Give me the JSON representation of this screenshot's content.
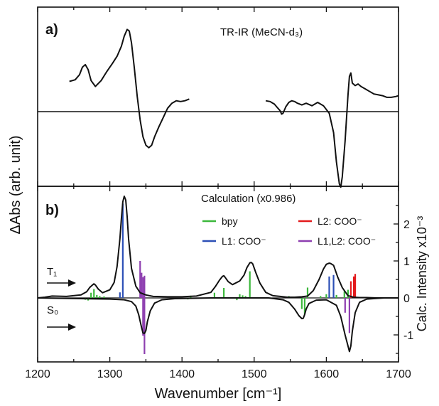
{
  "figure": {
    "ylabel_left": "ΔAbs (arb. unit)",
    "xlabel": "Wavenumber [cm⁻¹]",
    "xlim": [
      1200,
      1700
    ],
    "xticks": [
      "1200",
      "1300",
      "1400",
      "1500",
      "1600",
      "1700"
    ]
  },
  "panel_a": {
    "label": "a)",
    "title": "TR-IR (MeCN-d₃)"
  },
  "panel_b": {
    "label": "b)",
    "title": "Calculation (x0.986)",
    "ylabel_right": "Calc. Intensity x10⁻³",
    "yticks": [
      "-1",
      "0",
      "1",
      "2"
    ],
    "state_T1": "T₁",
    "state_S0": "S₀",
    "legend": [
      {
        "label": "bpy",
        "color": "#3cb83c"
      },
      {
        "label": "L2: COO⁻",
        "color": "#e31a1c"
      },
      {
        "label": "L1: COO⁻",
        "color": "#2c4fb6"
      },
      {
        "label": "L1,L2: COO⁻",
        "color": "#8e3fb0"
      }
    ]
  },
  "chart_data": [
    {
      "type": "line",
      "title": "TR-IR (MeCN-d₃)",
      "xlabel": "Wavenumber [cm⁻¹]",
      "ylabel": "ΔAbs (arb. unit)",
      "xlim": [
        1200,
        1700
      ],
      "ylim": [
        -0.95,
        1.0
      ],
      "series": [
        {
          "x": [
            1244,
            1252,
            1258,
            1262,
            1266,
            1270,
            1274,
            1280,
            1288,
            1296,
            1304,
            1310,
            1316,
            1320,
            1324,
            1327,
            1330,
            1334,
            1338,
            1342,
            1346,
            1350,
            1354,
            1358,
            1362,
            1368,
            1374,
            1380,
            1386,
            1392,
            1398,
            1404,
            1410
          ],
          "y": [
            0.36,
            0.38,
            0.44,
            0.53,
            0.56,
            0.5,
            0.37,
            0.3,
            0.37,
            0.48,
            0.58,
            0.66,
            0.78,
            0.9,
            0.98,
            0.96,
            0.82,
            0.52,
            0.18,
            -0.1,
            -0.3,
            -0.4,
            -0.43,
            -0.4,
            -0.3,
            -0.18,
            -0.07,
            0.04,
            0.1,
            0.13,
            0.12,
            0.13,
            0.15
          ]
        },
        {
          "x": [
            1516,
            1522,
            1528,
            1532,
            1536,
            1538,
            1540,
            1544,
            1548,
            1552,
            1556,
            1560,
            1566,
            1572,
            1580,
            1588,
            1596,
            1604,
            1610,
            1614,
            1618,
            1620,
            1622,
            1626,
            1630,
            1632,
            1634,
            1636,
            1640,
            1644,
            1648,
            1654,
            1660,
            1666,
            1672,
            1678,
            1684,
            1690,
            1696,
            1700
          ],
          "y": [
            0.13,
            0.12,
            0.09,
            0.05,
            0.01,
            -0.03,
            -0.02,
            0.06,
            0.11,
            0.13,
            0.12,
            0.1,
            0.08,
            0.1,
            0.07,
            0.11,
            0.07,
            -0.02,
            -0.25,
            -0.6,
            -0.86,
            -0.9,
            -0.78,
            -0.35,
            0.2,
            0.42,
            0.46,
            0.34,
            0.31,
            0.33,
            0.3,
            0.27,
            0.24,
            0.21,
            0.2,
            0.19,
            0.17,
            0.17,
            0.18,
            0.19
          ]
        }
      ]
    },
    {
      "type": "line",
      "title": "Calculation (x0.986)",
      "xlabel": "Wavenumber [cm⁻¹]",
      "ylabel": "Calc. Intensity x10⁻³",
      "xlim": [
        1200,
        1700
      ],
      "ylim": [
        -1.75,
        2.9
      ],
      "series": [
        {
          "name": "T₁",
          "x": [
            1200,
            1210,
            1220,
            1240,
            1260,
            1268,
            1272,
            1276,
            1278,
            1280,
            1284,
            1290,
            1300,
            1306,
            1310,
            1314,
            1316,
            1318,
            1320,
            1322,
            1324,
            1326,
            1330,
            1336,
            1342,
            1350,
            1360,
            1380,
            1400,
            1420,
            1440,
            1446,
            1452,
            1456,
            1458,
            1460,
            1464,
            1470,
            1480,
            1486,
            1490,
            1494,
            1496,
            1498,
            1502,
            1508,
            1516,
            1526,
            1536,
            1546,
            1556,
            1566,
            1574,
            1582,
            1590,
            1596,
            1600,
            1604,
            1606,
            1610,
            1616,
            1622,
            1630,
            1638,
            1646,
            1656,
            1670,
            1700
          ],
          "y": [
            0.0,
            0.02,
            0.05,
            0.04,
            0.08,
            0.17,
            0.28,
            0.35,
            0.38,
            0.35,
            0.24,
            0.14,
            0.22,
            0.42,
            0.85,
            1.6,
            2.15,
            2.6,
            2.75,
            2.65,
            2.2,
            1.6,
            0.8,
            0.32,
            0.14,
            0.08,
            0.04,
            0.03,
            0.03,
            0.05,
            0.15,
            0.3,
            0.48,
            0.58,
            0.6,
            0.55,
            0.44,
            0.36,
            0.46,
            0.62,
            0.82,
            0.95,
            0.96,
            0.92,
            0.7,
            0.4,
            0.15,
            0.06,
            0.04,
            0.02,
            0.02,
            0.03,
            0.05,
            0.2,
            0.5,
            0.78,
            0.91,
            0.94,
            0.93,
            0.88,
            0.55,
            0.28,
            0.06,
            0.02,
            0.01,
            0.01,
            0.0,
            0.0
          ]
        },
        {
          "name": "S₀",
          "x": [
            1200,
            1260,
            1300,
            1320,
            1330,
            1336,
            1340,
            1344,
            1346,
            1348,
            1350,
            1352,
            1356,
            1362,
            1372,
            1390,
            1440,
            1520,
            1540,
            1548,
            1556,
            1562,
            1566,
            1568,
            1570,
            1572,
            1576,
            1586,
            1600,
            1614,
            1620,
            1626,
            1630,
            1632,
            1634,
            1636,
            1640,
            1646,
            1656,
            1680,
            1700
          ],
          "y": [
            0.0,
            -0.02,
            -0.03,
            -0.05,
            -0.1,
            -0.22,
            -0.45,
            -0.8,
            -0.95,
            -0.96,
            -0.88,
            -0.65,
            -0.35,
            -0.14,
            -0.05,
            -0.02,
            0.0,
            0.0,
            -0.05,
            -0.12,
            -0.3,
            -0.48,
            -0.56,
            -0.55,
            -0.45,
            -0.3,
            -0.15,
            -0.06,
            -0.05,
            -0.2,
            -0.5,
            -1.0,
            -1.3,
            -1.45,
            -1.3,
            -0.9,
            -0.4,
            -0.12,
            -0.03,
            0.0,
            0.0
          ]
        },
        {
          "name": "bpy",
          "sticks": [
            [
              1266,
              -0.05
            ],
            [
              1270,
              -0.07
            ],
            [
              1274,
              0.14
            ],
            [
              1278,
              0.24
            ],
            [
              1282,
              0.08
            ],
            [
              1286,
              0.05
            ],
            [
              1292,
              0.04
            ],
            [
              1408,
              -0.04
            ],
            [
              1412,
              0.06
            ],
            [
              1445,
              0.14
            ],
            [
              1458,
              0.27
            ],
            [
              1476,
              -0.06
            ],
            [
              1480,
              0.1
            ],
            [
              1484,
              0.07
            ],
            [
              1488,
              0.05
            ],
            [
              1494,
              0.72
            ],
            [
              1548,
              0.05
            ],
            [
              1566,
              -0.3
            ],
            [
              1570,
              -0.45
            ],
            [
              1574,
              0.28
            ],
            [
              1592,
              0.05
            ],
            [
              1600,
              0.1
            ],
            [
              1614,
              0.08
            ],
            [
              1625,
              0.18
            ],
            [
              1630,
              0.22
            ]
          ]
        },
        {
          "name": "L1: COO⁻",
          "sticks": [
            [
              1314,
              0.15
            ],
            [
              1318,
              2.55
            ],
            [
              1604,
              0.58
            ],
            [
              1610,
              0.62
            ]
          ]
        },
        {
          "name": "L2: COO⁻",
          "sticks": [
            [
              1634,
              0.45
            ],
            [
              1638,
              0.58
            ],
            [
              1640,
              0.65
            ]
          ]
        },
        {
          "name": "L1,L2: COO⁻",
          "sticks": [
            [
              1342,
              1.0
            ],
            [
              1344,
              0.68
            ],
            [
              1346,
              0.56
            ],
            [
              1348,
              0.6
            ],
            [
              1346,
              -1.02
            ],
            [
              1348,
              -1.52
            ],
            [
              1626,
              -0.4
            ],
            [
              1632,
              -0.95
            ]
          ]
        }
      ]
    }
  ]
}
